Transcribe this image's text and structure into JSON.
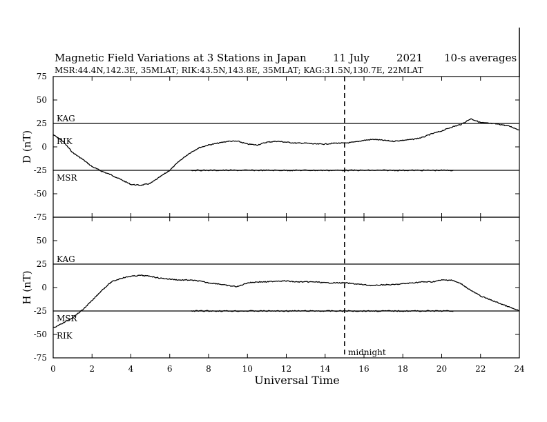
{
  "chart_data": {
    "type": "line",
    "title": "Magnetic Field Variations at 3 Stations in Japan",
    "date": "11 July",
    "year": "2021",
    "averaging": "10-s averages",
    "stations_info": "MSR:44.4N,142.3E, 35MLAT;  RIK:43.5N,143.8E, 35MLAT;  KAG:31.5N,130.7E, 22MLAT",
    "xlabel": "Universal Time",
    "xlim": [
      0,
      24
    ],
    "xticks": [
      "0",
      "2",
      "4",
      "6",
      "8",
      "10",
      "12",
      "14",
      "16",
      "18",
      "20",
      "22",
      "24"
    ],
    "midnight_marker": {
      "x": 15,
      "label": "midnight"
    },
    "panels": [
      {
        "ylabel": "D (nT)",
        "ylim": [
          -75,
          75
        ],
        "yticks": [
          "75",
          "50",
          "25",
          "0",
          "-25",
          "-50",
          "-75"
        ],
        "baselines": [
          {
            "name": "KAG",
            "y": 25
          },
          {
            "name": "MSR",
            "y": -25
          }
        ],
        "series": [
          {
            "name": "RIK",
            "x": [
              0,
              0.5,
              1,
              1.5,
              2,
              2.5,
              3,
              3.5,
              4,
              4.5,
              5,
              5.5,
              6,
              6.5,
              7,
              7.5,
              8,
              8.5,
              9,
              9.5,
              10,
              10.5,
              11,
              11.5,
              12,
              12.5,
              13,
              13.5,
              14,
              14.5,
              15,
              15.5,
              16,
              16.5,
              17,
              17.5,
              18,
              18.5,
              19,
              19.5,
              20,
              20.5,
              21,
              21.5,
              22,
              22.5,
              23,
              23.5,
              24
            ],
            "y": [
              13,
              6,
              -6,
              -13,
              -21,
              -26,
              -30,
              -35,
              -40,
              -41,
              -39,
              -32,
              -25,
              -15,
              -7,
              -1,
              2,
              4,
              6,
              6,
              3,
              2,
              5,
              6,
              5,
              4,
              4,
              3,
              3,
              4,
              4,
              5,
              7,
              8,
              7,
              6,
              7,
              8,
              10,
              14,
              17,
              21,
              24,
              30,
              26,
              25,
              24,
              22,
              18
            ]
          },
          {
            "name": "MSR",
            "x": [
              7.1,
              20.6
            ],
            "y": [
              -25,
              -25
            ]
          }
        ]
      },
      {
        "ylabel": "H (nT)",
        "ylim": [
          -75,
          75
        ],
        "yticks": [
          "75",
          "50",
          "25",
          "0",
          "-25",
          "-50",
          "-75"
        ],
        "baselines": [
          {
            "name": "KAG",
            "y": 25
          },
          {
            "name": "MSR",
            "y": -25
          }
        ],
        "series": [
          {
            "name": "RIK",
            "x": [
              0,
              0.5,
              1,
              1.5,
              2,
              2.5,
              3,
              3.5,
              4,
              4.5,
              5,
              5.5,
              6,
              6.5,
              7,
              7.5,
              8,
              8.5,
              9,
              9.5,
              10,
              10.5,
              11,
              11.5,
              12,
              12.5,
              13,
              13.5,
              14,
              14.5,
              15,
              15.5,
              16,
              16.5,
              17,
              17.5,
              18,
              18.5,
              19,
              19.5,
              20,
              20.5,
              21,
              21.5,
              22,
              22.5,
              23,
              23.5,
              24
            ],
            "y": [
              -43,
              -38,
              -32,
              -24,
              -14,
              -3,
              6,
              10,
              12,
              13,
              12,
              10,
              9,
              8,
              8,
              7,
              5,
              4,
              2,
              1,
              5,
              6,
              6,
              7,
              7,
              6,
              6,
              6,
              5,
              5,
              5,
              4,
              3,
              2,
              3,
              3,
              4,
              5,
              6,
              6,
              8,
              8,
              4,
              -3,
              -9,
              -13,
              -17,
              -21,
              -25
            ]
          },
          {
            "name": "MSR",
            "x": [
              7.1,
              20.6
            ],
            "y": [
              -25,
              -25
            ]
          }
        ]
      }
    ]
  }
}
